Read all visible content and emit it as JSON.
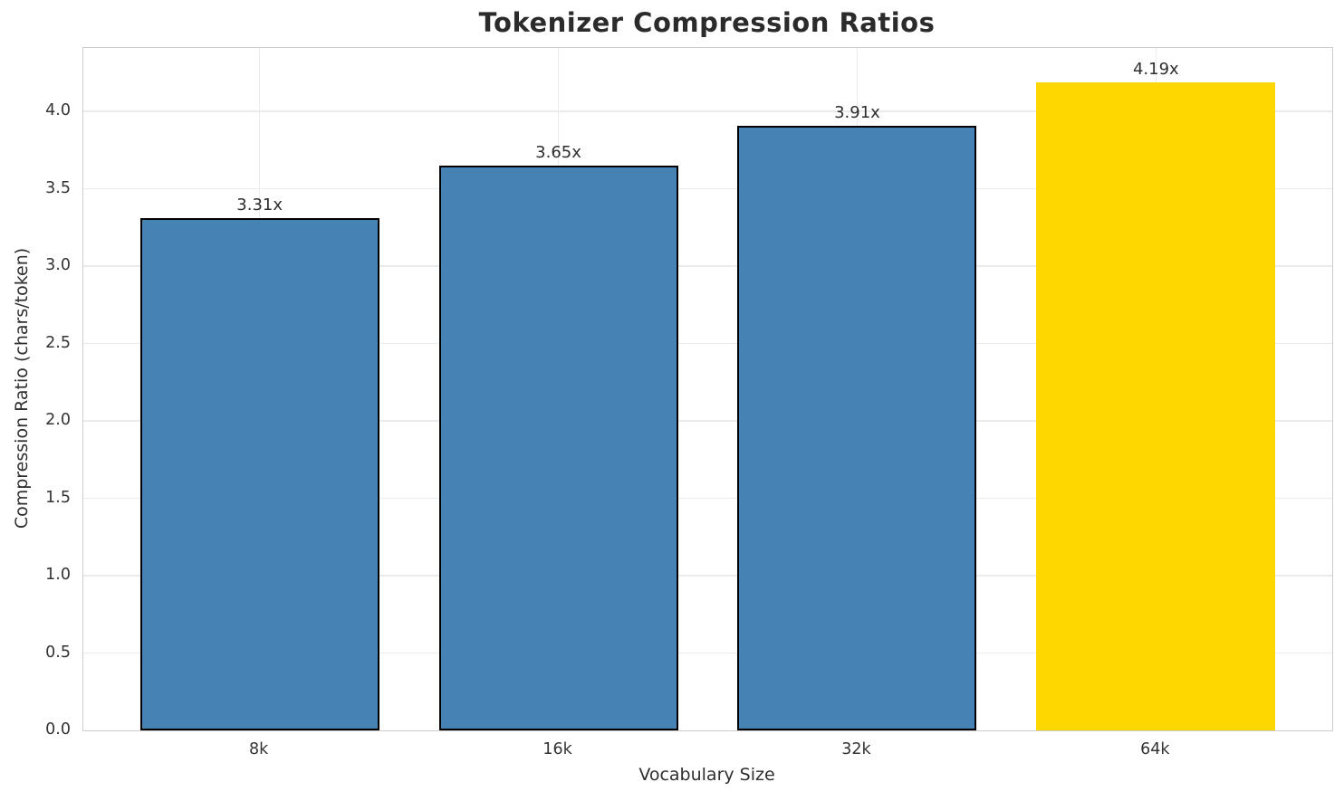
{
  "chart_data": {
    "type": "bar",
    "title": "Tokenizer Compression Ratios",
    "xlabel": "Vocabulary Size",
    "ylabel": "Compression Ratio (chars/token)",
    "categories": [
      "8k",
      "16k",
      "32k",
      "64k"
    ],
    "values": [
      3.31,
      3.65,
      3.91,
      4.19
    ],
    "bar_labels": [
      "3.31x",
      "3.65x",
      "3.91x",
      "4.19x"
    ],
    "ytick_labels": [
      "0.0",
      "0.5",
      "1.0",
      "1.5",
      "2.0",
      "2.5",
      "3.0",
      "3.5",
      "4.0"
    ],
    "yticks": [
      0,
      0.5,
      1,
      1.5,
      2,
      2.5,
      3,
      3.5,
      4
    ],
    "ylim": [
      0,
      4.41
    ],
    "grid": true,
    "legend": false,
    "highlight_index": 3,
    "colors": {
      "bar": "#4682B4",
      "highlight": "#FFD700",
      "bar_edge": "#000000",
      "grid_line": "#ebebeb",
      "spine": "#cccccc",
      "tick_text": "#333333",
      "title_text": "#2b2b2b"
    }
  }
}
